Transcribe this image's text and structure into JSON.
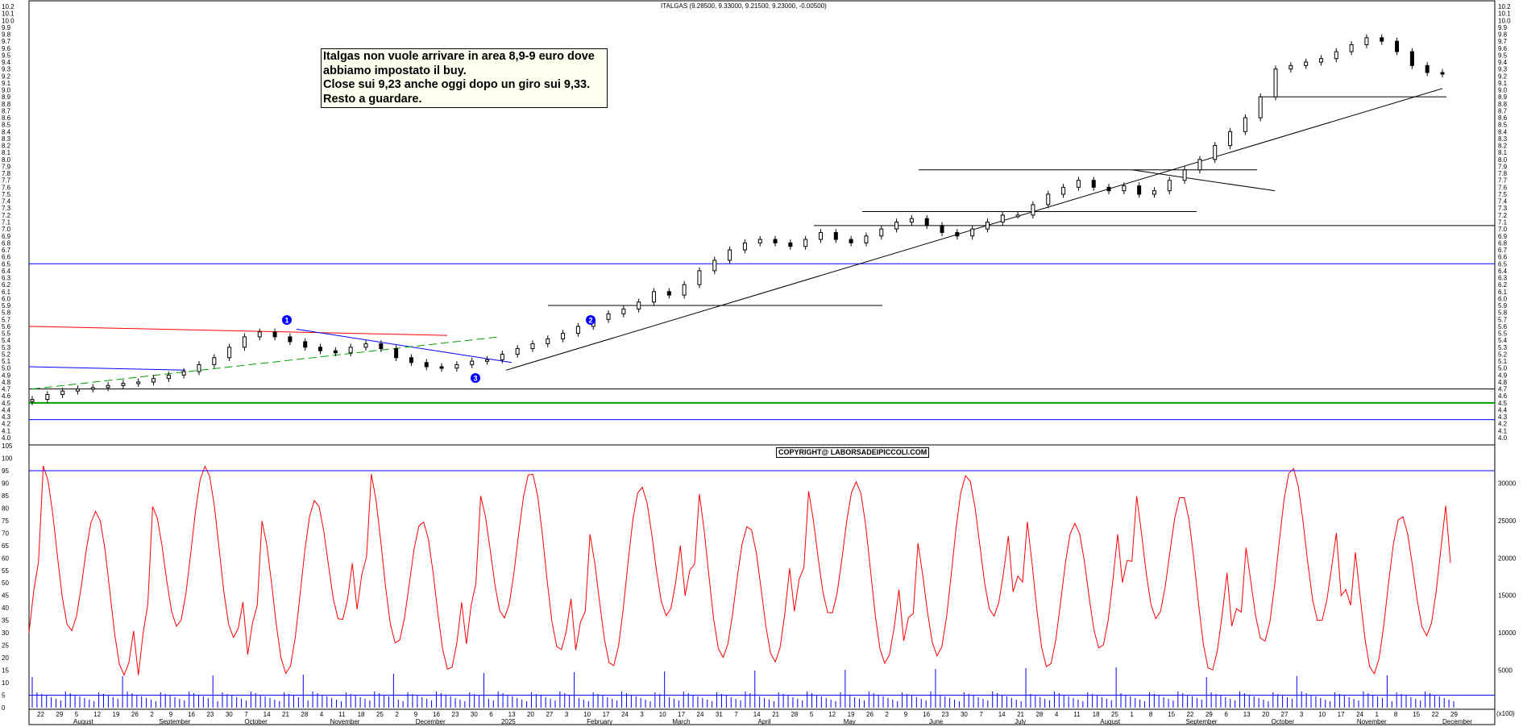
{
  "chart_title": "ITALGAS (9.28500, 9.33000, 9.21500, 9.23000, -0.00500)",
  "annotation": "Italgas non vuole arrivare in area 8,9-9 euro dove\nabbiamo impostato il buy.\nClose sui 9,23 anche oggi dopo un giro sui 9,33.\nResto a guardare.",
  "copyright": "COPYRIGHT@ LABORSADEIPICCOLI.COM",
  "badges": [
    "1",
    "2",
    "3"
  ],
  "colors": {
    "candle": "#000000",
    "oscillator": "#ff0000",
    "volume": "#0000ff",
    "hline_blue": "#0000ff",
    "hline_green": "#00a000",
    "dash_green": "#00a000",
    "red_line": "#ff0000",
    "blue_line": "#0000ff"
  },
  "chart_data": {
    "type": "candlestick",
    "price_ylim": [
      4.0,
      10.2
    ],
    "price_ticks": [
      "10.2",
      "10.1",
      "10.0",
      "9.9",
      "9.8",
      "9.7",
      "9.6",
      "9.5",
      "9.4",
      "9.3",
      "9.2",
      "9.1",
      "9.0",
      "8.9",
      "8.8",
      "8.7",
      "8.6",
      "8.5",
      "8.4",
      "8.3",
      "8.2",
      "8.1",
      "8.0",
      "7.9",
      "7.8",
      "7.7",
      "7.6",
      "7.5",
      "7.4",
      "7.3",
      "7.2",
      "7.1",
      "7.0",
      "6.9",
      "6.8",
      "6.7",
      "6.6",
      "6.5",
      "6.4",
      "6.3",
      "6.2",
      "6.1",
      "6.0",
      "5.9",
      "5.8",
      "5.7",
      "5.6",
      "5.5",
      "5.4",
      "5.3",
      "5.2",
      "5.1",
      "5.0",
      "4.9",
      "4.8",
      "4.7",
      "4.6",
      "4.5",
      "4.4",
      "4.3",
      "4.2",
      "4.1",
      "4.0"
    ],
    "osc_ylim": [
      0,
      105
    ],
    "osc_ticks": [
      "105",
      "100",
      "95",
      "90",
      "85",
      "80",
      "75",
      "70",
      "65",
      "60",
      "55",
      "50",
      "45",
      "40",
      "35",
      "30",
      "25",
      "20",
      "15",
      "10",
      "5",
      "0"
    ],
    "vol_ylim": [
      0,
      35000
    ],
    "vol_ticks": [
      "30000",
      "25000",
      "20000",
      "15000",
      "10000",
      "5000"
    ],
    "vol_unit": "(x100)",
    "date_ticks": [
      "22",
      "29",
      "5",
      "12",
      "19",
      "26",
      "2",
      "9",
      "16",
      "23",
      "30",
      "7",
      "14",
      "21",
      "28",
      "4",
      "11",
      "18",
      "25",
      "2",
      "9",
      "16",
      "23",
      "30",
      "6",
      "13",
      "20",
      "27",
      "3",
      "10",
      "17",
      "24",
      "3",
      "10",
      "17",
      "24",
      "31",
      "7",
      "14",
      "21",
      "28",
      "5",
      "12",
      "19",
      "26",
      "2",
      "9",
      "16",
      "23",
      "30",
      "7",
      "14",
      "21",
      "28",
      "4",
      "11",
      "18",
      "25",
      "1",
      "8",
      "15",
      "22",
      "29",
      "6",
      "13",
      "20",
      "27",
      "3",
      "10",
      "17",
      "24",
      "1",
      "8",
      "15",
      "22",
      "29"
    ],
    "month_labels": [
      "August",
      "September",
      "October",
      "November",
      "December",
      "2025",
      "February",
      "March",
      "April",
      "May",
      "June",
      "July",
      "August",
      "September",
      "October",
      "November",
      "December"
    ],
    "closes": [
      4.55,
      4.62,
      4.67,
      4.7,
      4.72,
      4.75,
      4.78,
      4.8,
      4.85,
      4.9,
      4.95,
      5.05,
      5.15,
      5.3,
      5.45,
      5.52,
      5.45,
      5.38,
      5.3,
      5.25,
      5.22,
      5.3,
      5.35,
      5.28,
      5.15,
      5.08,
      5.02,
      5.0,
      5.05,
      5.1,
      5.12,
      5.2,
      5.28,
      5.35,
      5.42,
      5.5,
      5.6,
      5.7,
      5.78,
      5.85,
      5.95,
      6.1,
      6.05,
      6.2,
      6.4,
      6.55,
      6.7,
      6.8,
      6.85,
      6.8,
      6.75,
      6.85,
      6.95,
      6.85,
      6.8,
      6.9,
      7.0,
      7.1,
      7.15,
      7.05,
      6.95,
      6.9,
      7.0,
      7.1,
      7.2,
      7.2,
      7.35,
      7.5,
      7.6,
      7.7,
      7.6,
      7.55,
      7.62,
      7.5,
      7.55,
      7.7,
      7.85,
      8.0,
      8.2,
      8.4,
      8.6,
      8.9,
      9.3,
      9.35,
      9.4,
      9.45,
      9.55,
      9.65,
      9.75,
      9.7,
      9.55,
      9.35,
      9.25,
      9.23
    ]
  }
}
